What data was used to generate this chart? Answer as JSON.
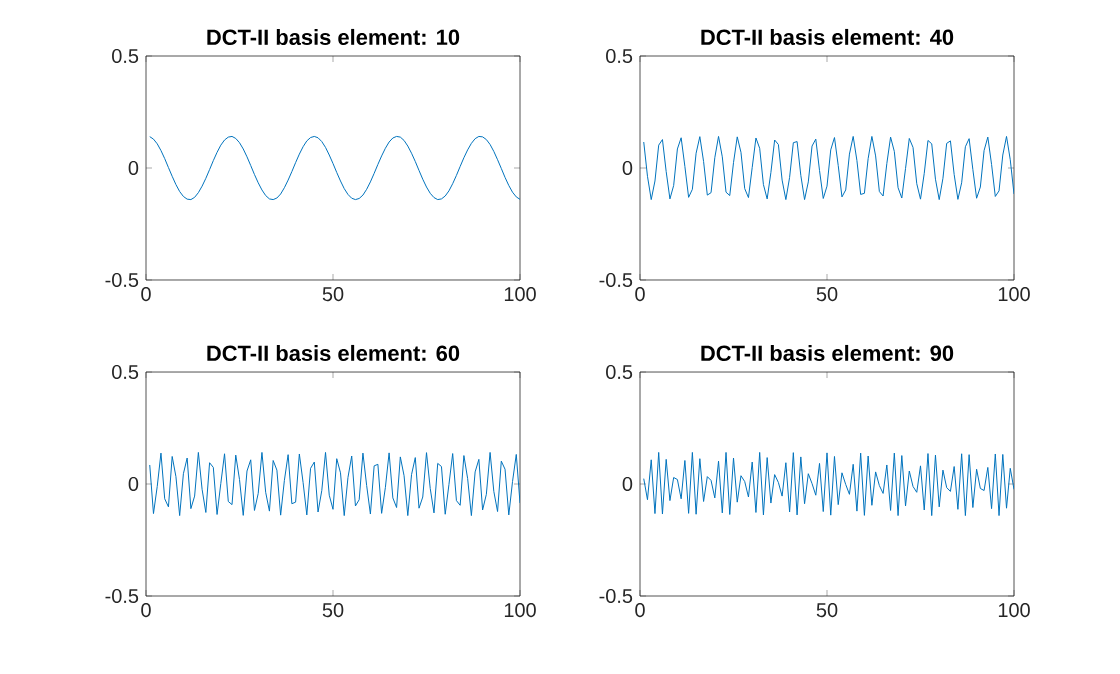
{
  "chart_data": [
    {
      "type": "line",
      "title": "DCT-II basis element: 10",
      "color": "#0072bd",
      "xlim": [
        0,
        100
      ],
      "ylim": [
        -0.5,
        0.5
      ],
      "xticks": [
        0,
        50,
        100
      ],
      "yticks": [
        -0.5,
        0,
        0.5
      ],
      "x": [
        1,
        2,
        3,
        4,
        5,
        6,
        7,
        8,
        9,
        10,
        11,
        12,
        13,
        14,
        15,
        16,
        17,
        18,
        19,
        20,
        21,
        22,
        23,
        24,
        25,
        26,
        27,
        28,
        29,
        30,
        31,
        32,
        33,
        34,
        35,
        36,
        37,
        38,
        39,
        40,
        41,
        42,
        43,
        44,
        45,
        46,
        47,
        48,
        49,
        50,
        51,
        52,
        53,
        54,
        55,
        56,
        57,
        58,
        59,
        60,
        61,
        62,
        63,
        64,
        65,
        66,
        67,
        68,
        69,
        70,
        71,
        72,
        73,
        74,
        75,
        76,
        77,
        78,
        79,
        80,
        81,
        82,
        83,
        84,
        85,
        86,
        87,
        88,
        89,
        90,
        91,
        92,
        93,
        94,
        95,
        96,
        97,
        98,
        99,
        100
      ],
      "values": [
        0.14,
        0.129,
        0.108,
        0.078,
        0.042,
        0.002,
        -0.037,
        -0.074,
        -0.105,
        -0.127,
        -0.139,
        -0.141,
        -0.131,
        -0.11,
        -0.081,
        -0.046,
        -0.007,
        0.033,
        0.07,
        0.102,
        0.125,
        0.138,
        0.141,
        0.132,
        0.113,
        0.085,
        0.05,
        0.011,
        -0.029,
        -0.066,
        -0.098,
        -0.123,
        -0.138,
        -0.141,
        -0.134,
        -0.116,
        -0.088,
        -0.054,
        -0.016,
        0.024,
        0.062,
        0.095,
        0.121,
        0.136,
        0.141,
        0.135,
        0.118,
        0.092,
        0.058,
        0.02,
        -0.02,
        -0.058,
        -0.092,
        -0.118,
        -0.135,
        -0.141,
        -0.136,
        -0.121,
        -0.095,
        -0.062,
        -0.024,
        0.016,
        0.054,
        0.088,
        0.116,
        0.134,
        0.141,
        0.138,
        0.123,
        0.098,
        0.066,
        0.029,
        -0.011,
        -0.05,
        -0.085,
        -0.113,
        -0.132,
        -0.141,
        -0.138,
        -0.125,
        -0.102,
        -0.07,
        -0.033,
        0.007,
        0.046,
        0.081,
        0.11,
        0.131,
        0.141,
        0.139,
        0.127,
        0.105,
        0.074,
        0.037,
        -0.002,
        -0.042,
        -0.078,
        -0.108,
        -0.129,
        -0.14
      ]
    },
    {
      "type": "line",
      "title": "DCT-II basis element: 40",
      "color": "#0072bd",
      "xlim": [
        0,
        100
      ],
      "ylim": [
        -0.5,
        0.5
      ],
      "xticks": [
        0,
        50,
        100
      ],
      "yticks": [
        -0.5,
        0,
        0.5
      ],
      "x": [
        1,
        2,
        3,
        4,
        5,
        6,
        7,
        8,
        9,
        10,
        11,
        12,
        13,
        14,
        15,
        16,
        17,
        18,
        19,
        20,
        21,
        22,
        23,
        24,
        25,
        26,
        27,
        28,
        29,
        30,
        31,
        32,
        33,
        34,
        35,
        36,
        37,
        38,
        39,
        40,
        41,
        42,
        43,
        44,
        45,
        46,
        47,
        48,
        49,
        50,
        51,
        52,
        53,
        54,
        55,
        56,
        57,
        58,
        59,
        60,
        61,
        62,
        63,
        64,
        65,
        66,
        67,
        68,
        69,
        70,
        71,
        72,
        73,
        74,
        75,
        76,
        77,
        78,
        79,
        80,
        81,
        82,
        83,
        84,
        85,
        86,
        87,
        88,
        89,
        90,
        91,
        92,
        93,
        94,
        95,
        96,
        97,
        98,
        99,
        100
      ],
      "values": [
        0.116,
        -0.037,
        -0.141,
        -0.058,
        0.102,
        0.127,
        -0.016,
        -0.138,
        -0.078,
        0.085,
        0.135,
        0.007,
        -0.131,
        -0.095,
        0.066,
        0.14,
        0.029,
        -0.121,
        -0.11,
        0.046,
        0.141,
        0.05,
        -0.108,
        -0.123,
        0.024,
        0.139,
        0.07,
        -0.092,
        -0.132,
        0.002,
        0.134,
        0.088,
        -0.074,
        -0.138,
        -0.02,
        0.125,
        0.105,
        -0.054,
        -0.141,
        -0.042,
        0.113,
        0.118,
        -0.033,
        -0.141,
        -0.062,
        0.098,
        0.129,
        -0.011,
        -0.136,
        -0.081,
        0.081,
        0.136,
        0.011,
        -0.129,
        -0.098,
        0.062,
        0.141,
        0.033,
        -0.118,
        -0.113,
        0.042,
        0.141,
        0.054,
        -0.105,
        -0.125,
        0.02,
        0.138,
        0.074,
        -0.088,
        -0.134,
        -0.002,
        0.132,
        0.092,
        -0.07,
        -0.139,
        -0.024,
        0.123,
        0.108,
        -0.05,
        -0.141,
        -0.046,
        0.11,
        0.121,
        -0.029,
        -0.14,
        -0.066,
        0.095,
        0.131,
        -0.007,
        -0.135,
        -0.085,
        0.078,
        0.138,
        0.016,
        -0.127,
        -0.102,
        0.058,
        0.141,
        0.037,
        -0.116
      ]
    },
    {
      "type": "line",
      "title": "DCT-II basis element: 60",
      "color": "#0072bd",
      "xlim": [
        0,
        100
      ],
      "ylim": [
        -0.5,
        0.5
      ],
      "xticks": [
        0,
        50,
        100
      ],
      "yticks": [
        -0.5,
        0,
        0.5
      ],
      "x": [
        1,
        2,
        3,
        4,
        5,
        6,
        7,
        8,
        9,
        10,
        11,
        12,
        13,
        14,
        15,
        16,
        17,
        18,
        19,
        20,
        21,
        22,
        23,
        24,
        25,
        26,
        27,
        28,
        29,
        30,
        31,
        32,
        33,
        34,
        35,
        36,
        37,
        38,
        39,
        40,
        41,
        42,
        43,
        44,
        45,
        46,
        47,
        48,
        49,
        50,
        51,
        52,
        53,
        54,
        55,
        56,
        57,
        58,
        59,
        60,
        61,
        62,
        63,
        64,
        65,
        66,
        67,
        68,
        69,
        70,
        71,
        72,
        73,
        74,
        75,
        76,
        77,
        78,
        79,
        80,
        81,
        82,
        83,
        84,
        85,
        86,
        87,
        88,
        89,
        90,
        91,
        92,
        93,
        94,
        95,
        96,
        97,
        98,
        99,
        100
      ],
      "values": [
        0.085,
        -0.132,
        -0.011,
        0.138,
        -0.066,
        -0.102,
        0.123,
        0.033,
        -0.141,
        0.046,
        0.116,
        -0.11,
        -0.054,
        0.141,
        -0.024,
        -0.127,
        0.095,
        0.074,
        -0.136,
        0.002,
        0.135,
        -0.078,
        -0.092,
        0.129,
        0.02,
        -0.14,
        0.058,
        0.108,
        -0.118,
        -0.042,
        0.141,
        -0.037,
        -0.121,
        0.105,
        0.062,
        -0.139,
        0.016,
        0.131,
        -0.088,
        -0.081,
        0.134,
        0.007,
        -0.138,
        0.07,
        0.098,
        -0.125,
        -0.029,
        0.141,
        -0.05,
        -0.113,
        0.113,
        0.05,
        -0.141,
        0.029,
        0.125,
        -0.098,
        -0.07,
        0.138,
        -0.007,
        -0.134,
        0.081,
        0.088,
        -0.131,
        -0.016,
        0.139,
        -0.062,
        -0.105,
        0.121,
        0.037,
        -0.141,
        0.042,
        0.118,
        -0.108,
        -0.058,
        0.14,
        -0.02,
        -0.129,
        0.092,
        0.078,
        -0.135,
        -0.002,
        0.136,
        -0.074,
        -0.095,
        0.127,
        0.024,
        -0.141,
        0.054,
        0.11,
        -0.116,
        -0.046,
        0.141,
        -0.033,
        -0.123,
        0.102,
        0.066,
        -0.138,
        0.011,
        0.132,
        -0.085
      ]
    },
    {
      "type": "line",
      "title": "DCT-II basis element: 90",
      "color": "#0072bd",
      "xlim": [
        0,
        100
      ],
      "ylim": [
        -0.5,
        0.5
      ],
      "xticks": [
        0,
        50,
        100
      ],
      "yticks": [
        -0.5,
        0,
        0.5
      ],
      "x": [
        1,
        2,
        3,
        4,
        5,
        6,
        7,
        8,
        9,
        10,
        11,
        12,
        13,
        14,
        15,
        16,
        17,
        18,
        19,
        20,
        21,
        22,
        23,
        24,
        25,
        26,
        27,
        28,
        29,
        30,
        31,
        32,
        33,
        34,
        35,
        36,
        37,
        38,
        39,
        40,
        41,
        42,
        43,
        44,
        45,
        46,
        47,
        48,
        49,
        50,
        51,
        52,
        53,
        54,
        55,
        56,
        57,
        58,
        59,
        60,
        61,
        62,
        63,
        64,
        65,
        66,
        67,
        68,
        69,
        70,
        71,
        72,
        73,
        74,
        75,
        76,
        77,
        78,
        79,
        80,
        81,
        82,
        83,
        84,
        85,
        86,
        87,
        88,
        89,
        90,
        91,
        92,
        93,
        94,
        95,
        96,
        97,
        98,
        99,
        100
      ],
      "values": [
        0.024,
        -0.07,
        0.108,
        -0.132,
        0.141,
        -0.134,
        0.11,
        -0.074,
        0.029,
        0.02,
        -0.066,
        0.105,
        -0.131,
        0.141,
        -0.135,
        0.113,
        -0.078,
        0.033,
        0.016,
        -0.062,
        0.102,
        -0.129,
        0.141,
        -0.136,
        0.116,
        -0.081,
        0.037,
        0.011,
        -0.058,
        0.098,
        -0.127,
        0.141,
        -0.138,
        0.118,
        -0.085,
        0.042,
        0.007,
        -0.054,
        0.095,
        -0.125,
        0.14,
        -0.138,
        0.121,
        -0.088,
        0.046,
        0.002,
        -0.05,
        0.092,
        -0.123,
        0.139,
        -0.139,
        0.123,
        -0.092,
        0.05,
        -0.002,
        -0.046,
        0.088,
        -0.121,
        0.138,
        -0.14,
        0.125,
        -0.095,
        0.054,
        -0.007,
        -0.042,
        0.085,
        -0.118,
        0.138,
        -0.141,
        0.127,
        -0.098,
        0.058,
        -0.011,
        -0.037,
        0.081,
        -0.116,
        0.136,
        -0.141,
        0.129,
        -0.102,
        0.062,
        -0.016,
        -0.033,
        0.078,
        -0.113,
        0.135,
        -0.141,
        0.131,
        -0.105,
        0.066,
        -0.02,
        -0.029,
        0.074,
        -0.11,
        0.134,
        -0.141,
        0.132,
        -0.108,
        0.07,
        -0.024
      ]
    }
  ]
}
